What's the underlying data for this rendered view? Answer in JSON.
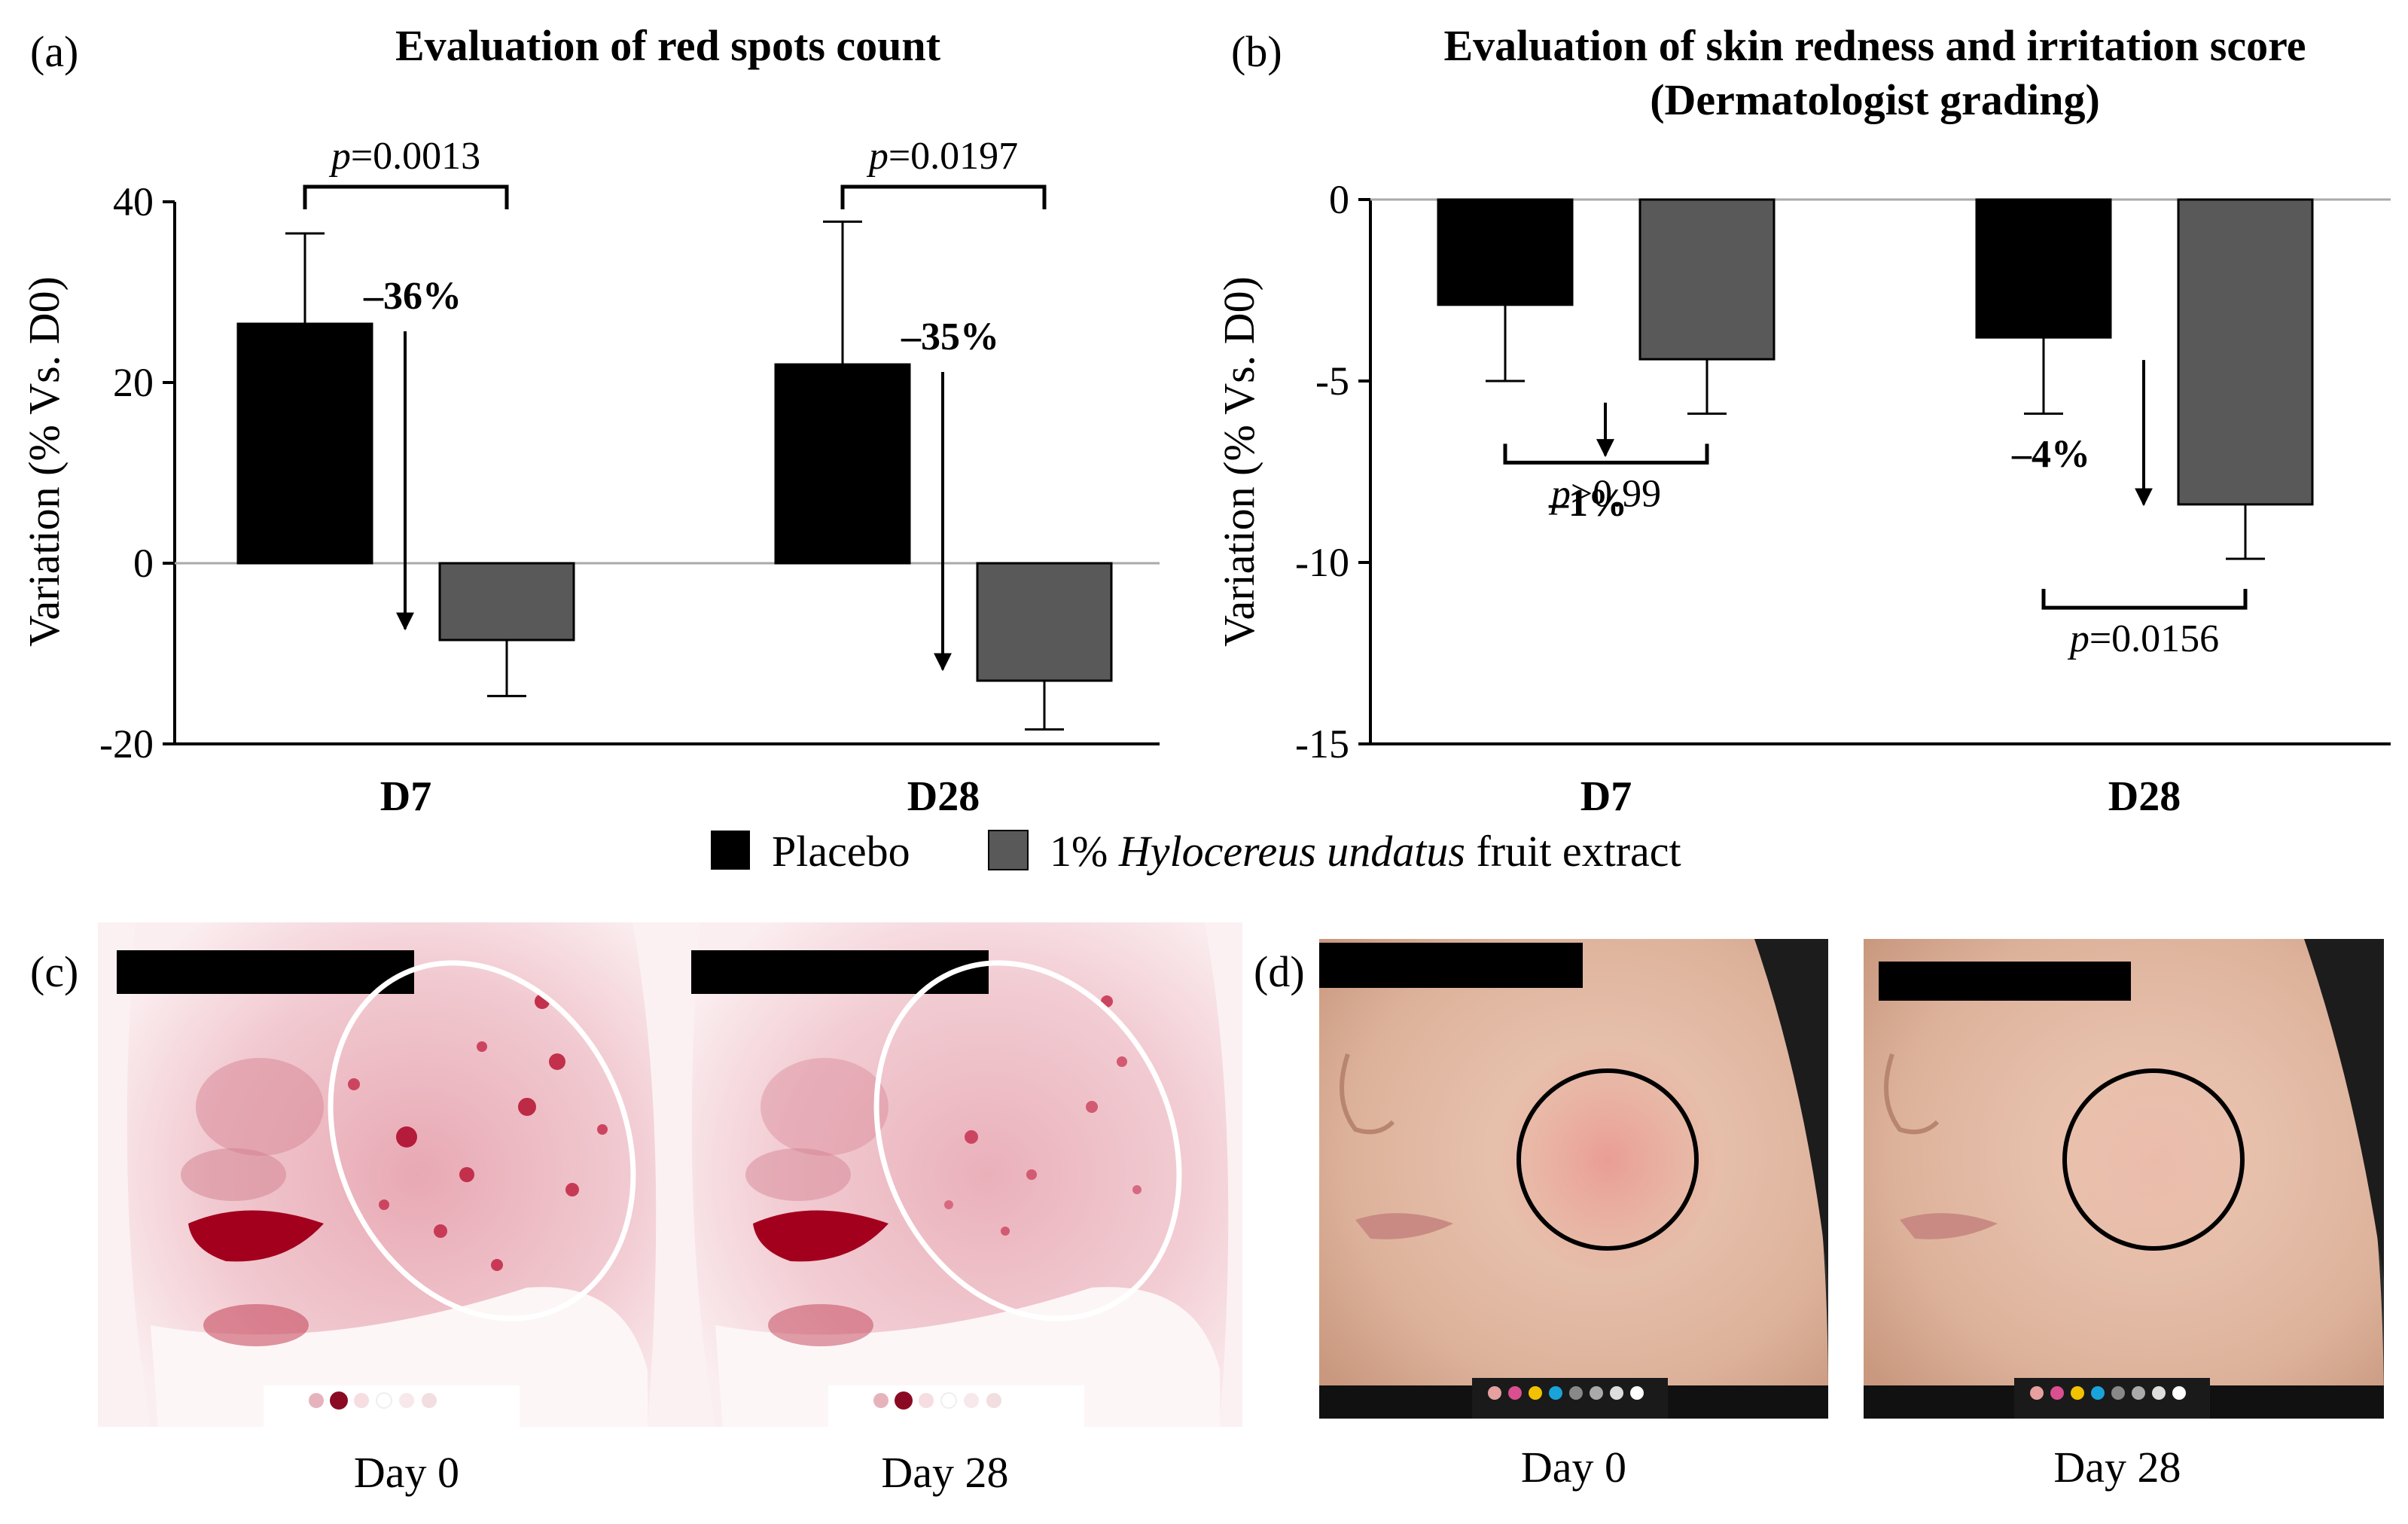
{
  "colors": {
    "placebo": "#000000",
    "extract": "#595959",
    "axis": "#000000",
    "zero_line": "#aaaaaa"
  },
  "legend": {
    "placebo": "Placebo",
    "extract_prefix": "1% ",
    "extract_italic": "Hylocereus undatus",
    "extract_suffix": " fruit extract"
  },
  "chart_data": [
    {
      "type": "bar",
      "panel": "(a)",
      "title": "Evaluation of red spots count",
      "ylabel": "Variation (% Vs. D0)",
      "ylim": [
        -20,
        40
      ],
      "yticks": [
        40,
        20,
        0,
        -20
      ],
      "categories": [
        "D7",
        "D28"
      ],
      "series": [
        {
          "name": "Placebo",
          "values": [
            26.5,
            22
          ],
          "errors": [
            10,
            15.8
          ]
        },
        {
          "name": "1% Hylocereus undatus fruit extract",
          "values": [
            -8.5,
            -13
          ],
          "errors": [
            6.2,
            5.4
          ]
        }
      ],
      "annotations": [
        {
          "p_prefix": "p",
          "p_value": "=0.0013",
          "change": "–36%"
        },
        {
          "p_prefix": "p",
          "p_value": "=0.0197",
          "change": "–35%"
        }
      ]
    },
    {
      "type": "bar",
      "panel": "(b)",
      "title": "Evaluation of skin redness and irritation score",
      "subtitle": "(Dermatologist grading)",
      "ylabel": "Variation (% Vs. D0)",
      "ylim": [
        -15,
        0
      ],
      "yticks": [
        0,
        -5,
        -10,
        -15
      ],
      "categories": [
        "D7",
        "D28"
      ],
      "series": [
        {
          "name": "Placebo",
          "values": [
            -2.9,
            -3.8
          ],
          "errors": [
            2.1,
            2.1
          ]
        },
        {
          "name": "1% Hylocereus undatus fruit extract",
          "values": [
            -4.4,
            -8.4
          ],
          "errors": [
            1.5,
            1.5
          ]
        }
      ],
      "annotations": [
        {
          "p_prefix": "p",
          "p_value": ">0.99",
          "change": "–1%"
        },
        {
          "p_prefix": "p",
          "p_value": "=0.0156",
          "change": "–4%"
        }
      ]
    }
  ],
  "photos": {
    "c_panel": "(c)",
    "d_panel": "(d)",
    "c_left": "Day 0",
    "c_right": "Day 28",
    "d_left": "Day 0",
    "d_right": "Day 28"
  }
}
